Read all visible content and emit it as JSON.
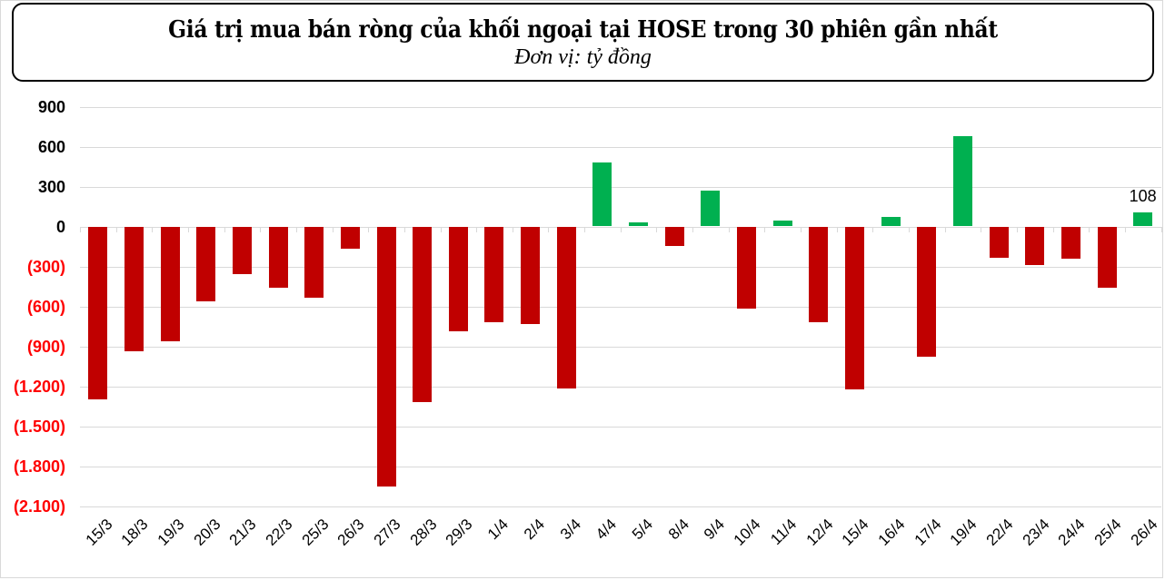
{
  "header": {
    "title": "Giá trị mua bán ròng của khối ngoại tại HOSE trong 30 phiên gần nhất",
    "subtitle": "Đơn vị: tỷ đồng"
  },
  "colors": {
    "negative_bar": "#C00000",
    "positive_bar": "#00B050",
    "negative_tick": "#FF0000",
    "positive_tick": "#000000",
    "gridline": "#D9D9D9"
  },
  "axis": {
    "y_ticks": [
      {
        "value": 900,
        "label": "900"
      },
      {
        "value": 600,
        "label": "600"
      },
      {
        "value": 300,
        "label": "300"
      },
      {
        "value": 0,
        "label": "0"
      },
      {
        "value": -300,
        "label": "(300)"
      },
      {
        "value": -600,
        "label": "(600)"
      },
      {
        "value": -900,
        "label": "(900)"
      },
      {
        "value": -1200,
        "label": "(1.200)"
      },
      {
        "value": -1500,
        "label": "(1.500)"
      },
      {
        "value": -1800,
        "label": "(1.800)"
      },
      {
        "value": -2100,
        "label": "(2.100)"
      }
    ]
  },
  "data_labels": [
    {
      "category": "26/4",
      "text": "108"
    }
  ],
  "chart_data": {
    "type": "bar",
    "title": "Giá trị mua bán ròng của khối ngoại tại HOSE trong 30 phiên gần nhất",
    "subtitle": "Đơn vị: tỷ đồng",
    "xlabel": "",
    "ylabel": "",
    "ylim": [
      -2100,
      900
    ],
    "y_tick_step": 300,
    "grid": true,
    "legend": null,
    "categories": [
      "15/3",
      "18/3",
      "19/3",
      "20/3",
      "21/3",
      "22/3",
      "25/3",
      "26/3",
      "27/3",
      "28/3",
      "29/3",
      "1/4",
      "2/4",
      "3/4",
      "4/4",
      "5/4",
      "8/4",
      "9/4",
      "10/4",
      "11/4",
      "12/4",
      "15/4",
      "16/4",
      "17/4",
      "19/4",
      "22/4",
      "23/4",
      "24/4",
      "25/4",
      "26/4"
    ],
    "values": [
      -1298,
      -936,
      -861,
      -561,
      -361,
      -459,
      -534,
      -170,
      -1950,
      -1316,
      -786,
      -716,
      -730,
      -1214,
      479,
      29,
      -148,
      268,
      -618,
      43,
      -716,
      -1227,
      70,
      -975,
      677,
      -236,
      -291,
      -243,
      -461,
      108
    ],
    "annotations": [
      {
        "category": "26/4",
        "text": "108"
      }
    ],
    "color_rule": {
      "negative": "#C00000",
      "positive": "#00B050"
    }
  }
}
